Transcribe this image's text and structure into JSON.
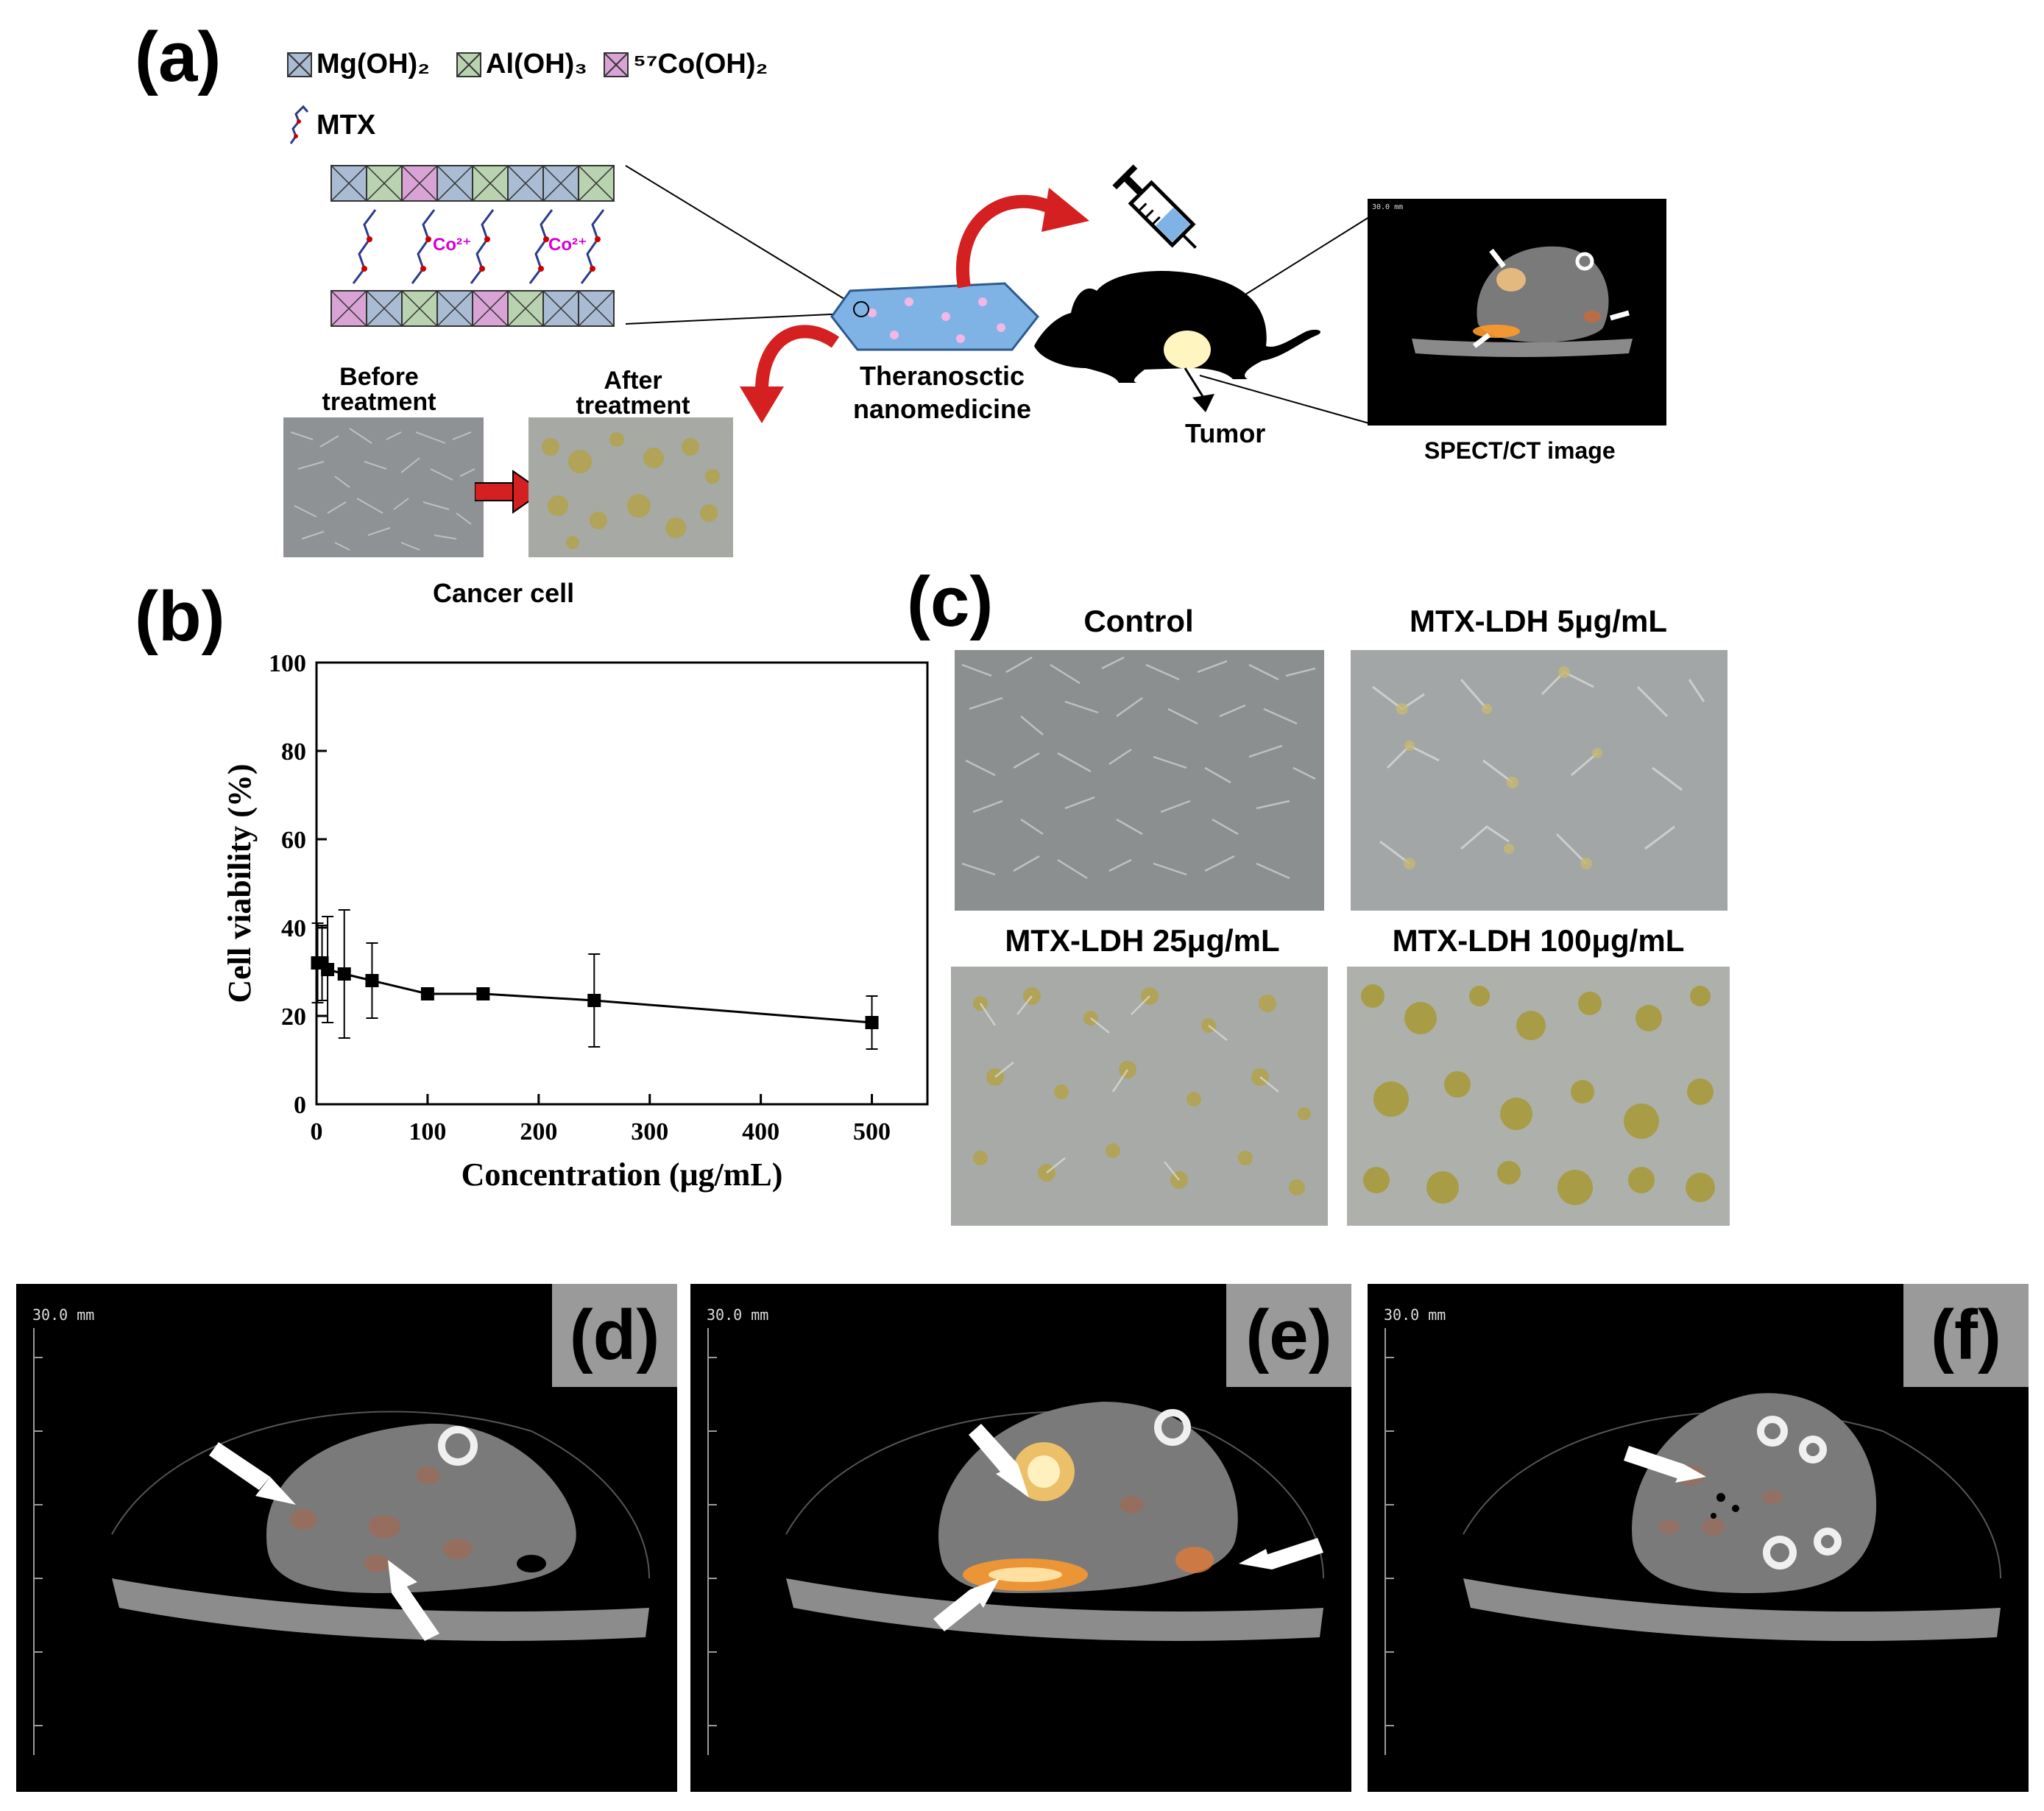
{
  "panels": {
    "a": "(a)",
    "b": "(b)",
    "c": "(c)",
    "d": "(d)",
    "e": "(e)",
    "f": "(f)"
  },
  "schematic": {
    "legend": [
      {
        "label": "Mg(OH)₂",
        "color": "#a9bcd3"
      },
      {
        "label": "Al(OH)₃",
        "color": "#b9d2b0"
      },
      {
        "label": "⁵⁷Co(OH)₂",
        "color": "#d9a3d6"
      }
    ],
    "mtx_label": "MTX",
    "cobalt_ion_1": "Co²⁺",
    "cobalt_ion_2": "Co²⁺",
    "before_treatment": "Before treatment",
    "after_treatment": "After treatment",
    "cancer_cell": "Cancer cell",
    "nanomedicine": "Theranosctic nanomedicine",
    "tumor": "Tumor",
    "spect_ct": "SPECT/CT image"
  },
  "cell_images": {
    "control": "Control",
    "ldh5": "MTX-LDH 5μg/mL",
    "ldh25": "MTX-LDH 25μg/mL",
    "ldh100": "MTX-LDH 100μg/mL"
  },
  "ct_scale": "30.0 mm",
  "chart_data": {
    "type": "line",
    "title": "",
    "xlabel": "Concentration (μg/mL)",
    "ylabel": "Cell viability (%)",
    "xlim": [
      0,
      550
    ],
    "ylim": [
      0,
      100
    ],
    "xticks": [
      0,
      100,
      200,
      300,
      400,
      500
    ],
    "yticks": [
      0,
      20,
      40,
      60,
      80,
      100
    ],
    "series": [
      {
        "name": "MTX-LDH",
        "x": [
          1,
          5,
          10,
          25,
          50,
          100,
          150,
          250,
          500
        ],
        "y": [
          32,
          32,
          30.5,
          29.5,
          28,
          25,
          25,
          23.5,
          18.5
        ],
        "err": [
          9,
          8.5,
          12,
          14.5,
          8.5,
          1,
          1,
          10.5,
          6
        ]
      }
    ]
  }
}
